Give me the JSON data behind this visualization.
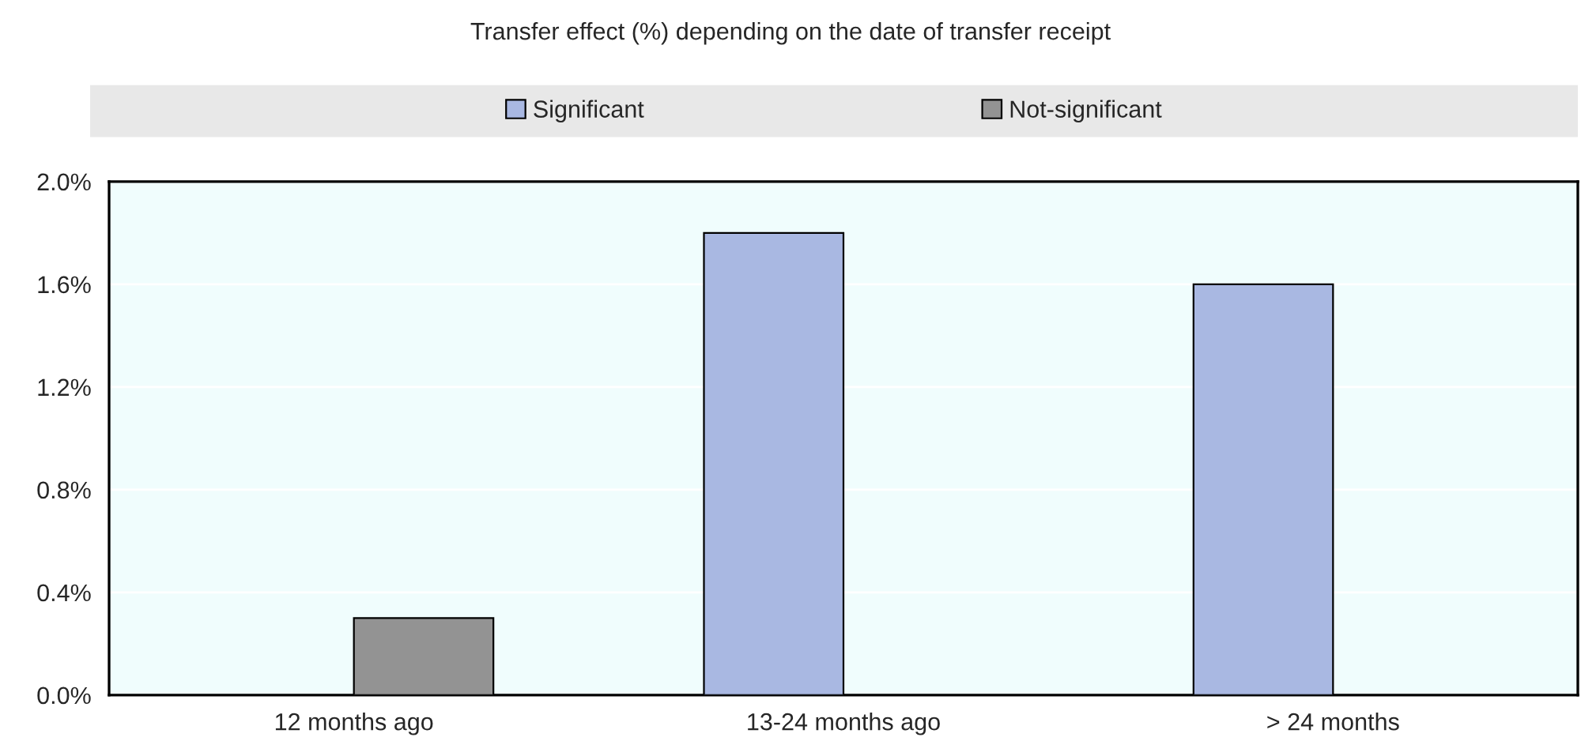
{
  "chart_data": {
    "type": "bar",
    "title": "Transfer effect (%) depending on the date of transfer receipt",
    "categories": [
      "12 months ago",
      "13-24 months ago",
      "> 24 months"
    ],
    "series": [
      {
        "name": "Significant",
        "color": "#a9b8e2",
        "values": [
          null,
          1.8,
          1.6
        ]
      },
      {
        "name": "Not-significant",
        "color": "#939393",
        "values": [
          0.3,
          null,
          null
        ]
      }
    ],
    "ylim": [
      0,
      2.0
    ],
    "yticks": [
      {
        "value": 0,
        "label": "0.0%"
      },
      {
        "value": 0.4,
        "label": "0.4%"
      },
      {
        "value": 0.8,
        "label": "0.8%"
      },
      {
        "value": 1.2,
        "label": "1.2%"
      },
      {
        "value": 1.6,
        "label": "1.6%"
      },
      {
        "value": 2.0,
        "label": "2.0%"
      }
    ],
    "grid": "y",
    "legend": "top"
  }
}
